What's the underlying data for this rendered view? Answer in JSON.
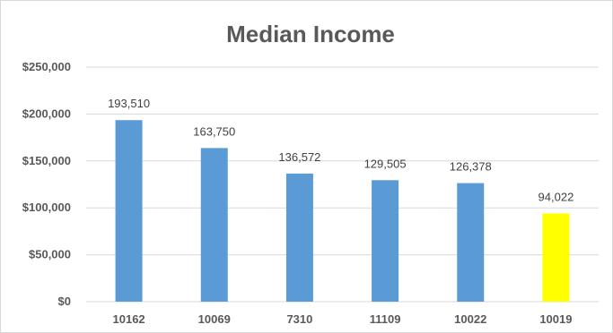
{
  "chart_data": {
    "type": "bar",
    "title": "Median Income",
    "xlabel": "",
    "ylabel": "",
    "categories": [
      "10162",
      "10069",
      "7310",
      "11109",
      "10022",
      "10019"
    ],
    "values": [
      193510,
      163750,
      136572,
      129505,
      126378,
      94022
    ],
    "value_labels": [
      "193,510",
      "163,750",
      "136,572",
      "129,505",
      "126,378",
      "94,022"
    ],
    "ylim": [
      0,
      250000
    ],
    "y_ticks": [
      0,
      50000,
      100000,
      150000,
      200000,
      250000
    ],
    "y_tick_labels": [
      "$0",
      "$50,000",
      "$100,000",
      "$150,000",
      "$200,000",
      "$250,000"
    ],
    "grid": true,
    "legend": "none",
    "colors": {
      "default_bar": "#5b9bd5",
      "highlight_bar": "#ffff00"
    },
    "highlight_index": 5
  }
}
